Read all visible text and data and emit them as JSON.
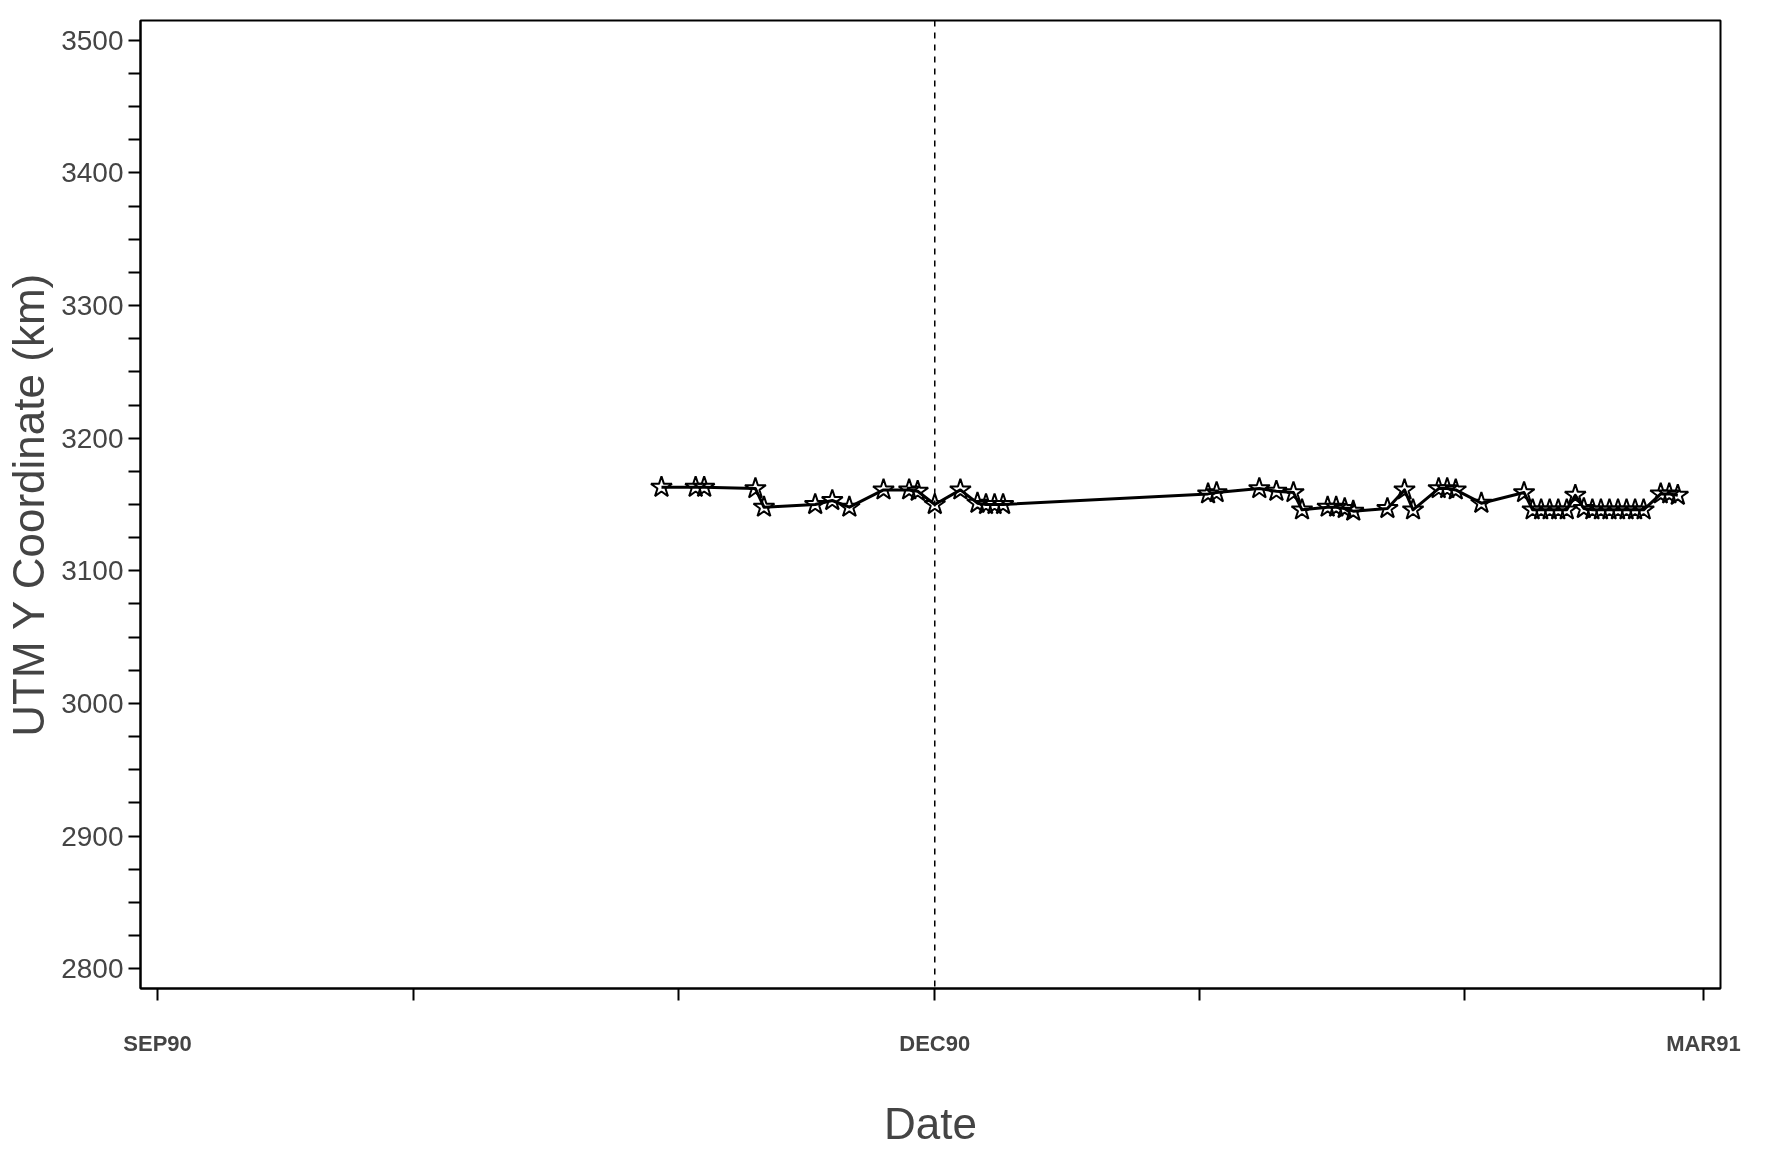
{
  "chart_data": {
    "type": "line",
    "xlabel": "Date",
    "ylabel": "UTM Y Coordinate (km)",
    "marker": "star",
    "line_style": "solid",
    "grid": false,
    "xlim": [
      "1990-08-30",
      "1991-03-03"
    ],
    "ylim": [
      2785,
      3515
    ],
    "xticks": [
      {
        "value": "1990-09-01",
        "label": "SEP90"
      },
      {
        "value": "1990-10-01",
        "label": null
      },
      {
        "value": "1990-11-01",
        "label": null
      },
      {
        "value": "1990-12-01",
        "label": "DEC90"
      },
      {
        "value": "1991-01-01",
        "label": null
      },
      {
        "value": "1991-02-01",
        "label": null
      },
      {
        "value": "1991-03-01",
        "label": "MAR91"
      }
    ],
    "yticks": [
      2800,
      {
        "value": 2825,
        "label": null
      },
      {
        "value": 2850,
        "label": null
      },
      {
        "value": 2875,
        "label": null
      },
      2900,
      {
        "value": 2925,
        "label": null
      },
      {
        "value": 2950,
        "label": null
      },
      {
        "value": 2975,
        "label": null
      },
      3000,
      {
        "value": 3025,
        "label": null
      },
      {
        "value": 3050,
        "label": null
      },
      {
        "value": 3075,
        "label": null
      },
      3100,
      {
        "value": 3125,
        "label": null
      },
      {
        "value": 3150,
        "label": null
      },
      {
        "value": 3175,
        "label": null
      },
      3200,
      {
        "value": 3225,
        "label": null
      },
      {
        "value": 3250,
        "label": null
      },
      {
        "value": 3275,
        "label": null
      },
      3300,
      {
        "value": 3325,
        "label": null
      },
      {
        "value": 3350,
        "label": null
      },
      {
        "value": 3375,
        "label": null
      },
      3400,
      {
        "value": 3425,
        "label": null
      },
      {
        "value": 3450,
        "label": null
      },
      {
        "value": 3475,
        "label": null
      },
      3500
    ],
    "ref_lines": [
      {
        "axis": "x",
        "value": "1990-12-01",
        "label": null,
        "line_style": "dashed",
        "color": "#000000"
      }
    ],
    "x": [
      "1990-10-30",
      "1990-11-03",
      "1990-11-04",
      "1990-11-10",
      "1990-11-11",
      "1990-11-17",
      "1990-11-19",
      "1990-11-21",
      "1990-11-25",
      "1990-11-28",
      "1990-11-29",
      "1990-12-01",
      "1990-12-04",
      "1990-12-06",
      "1990-12-07",
      "1990-12-08",
      "1990-12-09",
      "1991-01-02",
      "1991-01-03",
      "1991-01-08",
      "1991-01-10",
      "1991-01-12",
      "1991-01-13",
      "1991-01-16",
      "1991-01-17",
      "1991-01-18",
      "1991-01-19",
      "1991-01-23",
      "1991-01-25",
      "1991-01-26",
      "1991-01-29",
      "1991-01-30",
      "1991-01-31",
      "1991-02-03",
      "1991-02-08",
      "1991-02-09",
      "1991-02-10",
      "1991-02-11",
      "1991-02-12",
      "1991-02-13",
      "1991-02-14",
      "1991-02-15",
      "1991-02-16",
      "1991-02-17",
      "1991-02-18",
      "1991-02-19",
      "1991-02-20",
      "1991-02-21",
      "1991-02-22",
      "1991-02-24",
      "1991-02-25",
      "1991-02-26"
    ],
    "series": [
      {
        "color": "#000000",
        "values": [
          3163,
          3163,
          3163,
          3162,
          3148,
          3150,
          3153,
          3148,
          3161,
          3161,
          3160,
          3150,
          3161,
          3151,
          3150,
          3150,
          3150,
          3158,
          3159,
          3162,
          3160,
          3159,
          3146,
          3148,
          3148,
          3147,
          3145,
          3147,
          3161,
          3146,
          3162,
          3162,
          3161,
          3151,
          3159,
          3146,
          3146,
          3146,
          3146,
          3146,
          3157,
          3147,
          3146,
          3146,
          3146,
          3146,
          3146,
          3146,
          3146,
          3158,
          3158,
          3157
        ]
      }
    ]
  }
}
